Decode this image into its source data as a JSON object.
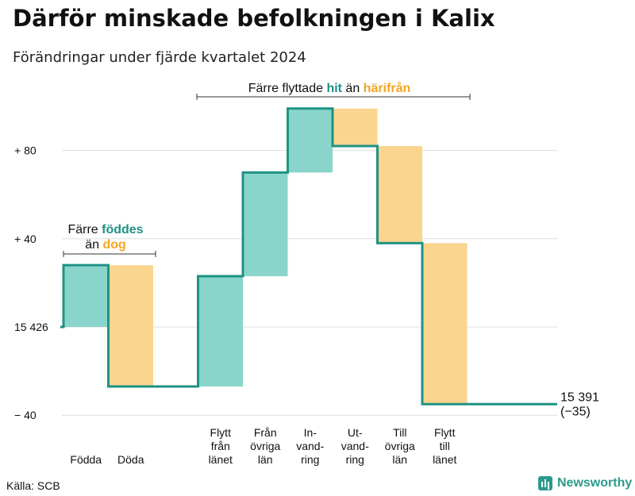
{
  "title": "Därför minskade befolkningen i Kalix",
  "subtitle": "Förändringar under fjärde kvartalet 2024",
  "source": "Källa: SCB",
  "brand": "Newsworthy",
  "colors": {
    "increase_fill": "#8ad5cb",
    "decrease_fill": "#fbd48f",
    "line": "#1e9383",
    "accent_teal": "#1e9383",
    "accent_orange": "#f5a623",
    "grid": "#dddddd"
  },
  "chart_data": {
    "type": "waterfall",
    "start_value": 15426,
    "end_value": 15391,
    "net_change": -35,
    "ylim": [
      -42,
      100
    ],
    "y_ticks": [
      {
        "value": 80,
        "label": "+ 80"
      },
      {
        "value": 40,
        "label": "+ 40"
      },
      {
        "value": 0,
        "label": "15 426"
      },
      {
        "value": -40,
        "label": "− 40"
      }
    ],
    "steps": [
      {
        "label": [
          "Födda"
        ],
        "change": 28
      },
      {
        "label": [
          "Döda"
        ],
        "change": -55
      },
      {
        "label": [],
        "change": 0
      },
      {
        "label": [
          "Flytt",
          "från",
          "länet"
        ],
        "change": 50
      },
      {
        "label": [
          "Från",
          "övriga",
          "län"
        ],
        "change": 47
      },
      {
        "label": [
          "In-",
          "vand-",
          "ring"
        ],
        "change": 29
      },
      {
        "label": [
          "Ut-",
          "vand-",
          "ring"
        ],
        "change": -17
      },
      {
        "label": [
          "Till",
          "övriga",
          "län"
        ],
        "change": -44
      },
      {
        "label": [
          "Flytt",
          "till",
          "länet"
        ],
        "change": -73
      }
    ],
    "end_label": [
      "15 391",
      "(−35)"
    ],
    "annotation_births": {
      "line1": "Färre",
      "line1_highlight": "föddes",
      "line2": "än",
      "line2_highlight": "dog"
    },
    "annotation_migration": {
      "text1": "Färre flyttade",
      "highlight1": "hit",
      "text2": "än",
      "highlight2": "härifrån"
    }
  }
}
